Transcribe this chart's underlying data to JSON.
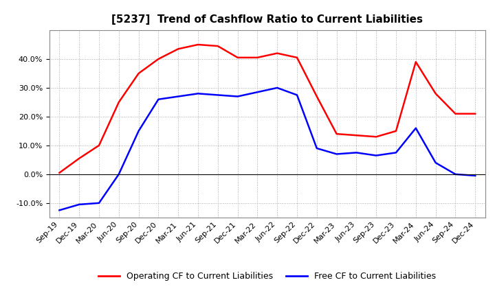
{
  "title": "[5237]  Trend of Cashflow Ratio to Current Liabilities",
  "x_labels": [
    "Sep-19",
    "Dec-19",
    "Mar-20",
    "Jun-20",
    "Sep-20",
    "Dec-20",
    "Mar-21",
    "Jun-21",
    "Sep-21",
    "Dec-21",
    "Mar-22",
    "Jun-22",
    "Sep-22",
    "Dec-22",
    "Mar-23",
    "Jun-23",
    "Sep-23",
    "Dec-23",
    "Mar-24",
    "Jun-24",
    "Sep-24",
    "Dec-24"
  ],
  "operating_cf": [
    0.5,
    5.5,
    10.0,
    25.0,
    35.0,
    40.0,
    43.5,
    45.0,
    44.5,
    40.5,
    40.5,
    42.0,
    40.5,
    27.0,
    14.0,
    13.5,
    13.0,
    15.0,
    39.0,
    28.0,
    21.0,
    21.0
  ],
  "free_cf": [
    -12.5,
    -10.5,
    -10.0,
    0.0,
    15.0,
    26.0,
    27.0,
    28.0,
    27.5,
    27.0,
    28.5,
    30.0,
    27.5,
    9.0,
    7.0,
    7.5,
    6.5,
    7.5,
    16.0,
    4.0,
    0.0,
    -0.5
  ],
  "operating_color": "#FF0000",
  "free_color": "#0000FF",
  "ylim": [
    -15,
    50
  ],
  "yticks": [
    -10.0,
    0.0,
    10.0,
    20.0,
    30.0,
    40.0
  ],
  "background_color": "#FFFFFF",
  "plot_bg_color": "#FFFFFF",
  "grid_color": "#AAAAAA",
  "legend_labels": [
    "Operating CF to Current Liabilities",
    "Free CF to Current Liabilities"
  ],
  "title_fontsize": 11,
  "axis_fontsize": 8,
  "legend_fontsize": 9
}
